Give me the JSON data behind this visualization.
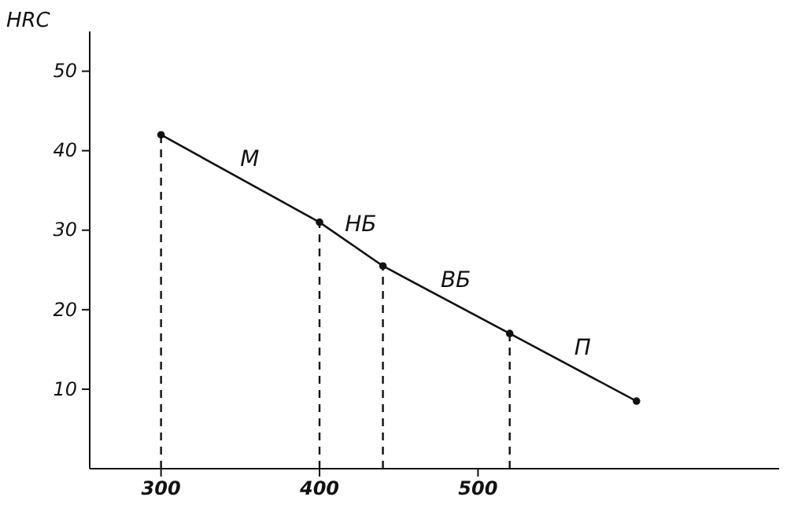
{
  "chart_data": {
    "type": "line",
    "ylabel": "HRC",
    "x": [
      300,
      400,
      440,
      520,
      600
    ],
    "series": [
      {
        "color": "#111111",
        "values": [
          42,
          31,
          25.5,
          17,
          8.5
        ]
      }
    ],
    "xlim": [
      255,
      690
    ],
    "ylim": [
      0,
      55
    ],
    "xticks": [
      300,
      400,
      500
    ],
    "yticks": [
      10,
      20,
      30,
      40,
      50
    ],
    "marker": "circle",
    "line_style": "solid",
    "grid": false,
    "ref_lines": [
      {
        "axis": "x",
        "value": 300,
        "line_style": "dashed"
      },
      {
        "axis": "x",
        "value": 400,
        "line_style": "dashed"
      },
      {
        "axis": "x",
        "value": 440,
        "line_style": "dashed"
      },
      {
        "axis": "x",
        "value": 520,
        "line_style": "dashed"
      }
    ],
    "annotations": [
      "М",
      "НБ",
      "ВБ",
      "П"
    ]
  }
}
